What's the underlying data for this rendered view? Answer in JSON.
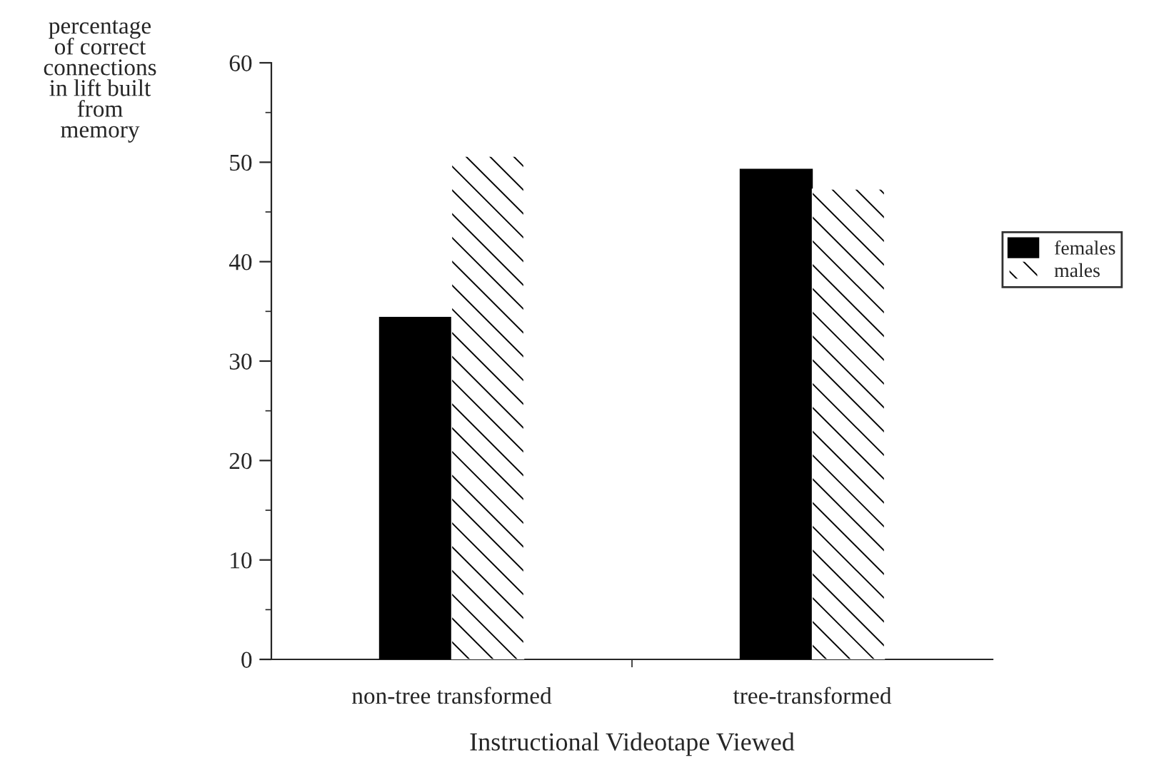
{
  "chart_data": {
    "type": "bar",
    "xlabel": "Instructional Videotape Viewed",
    "ylabel": "percentage\nof correct\nconnections\nin lift built\nfrom\nmemory",
    "categories": [
      "non-tree transformed",
      "tree-transformed"
    ],
    "series": [
      {
        "name": "females",
        "color": "#000000",
        "values": [
          34.4,
          49.3
        ]
      },
      {
        "name": "males",
        "color": "#ffffff",
        "values": [
          50.6,
          47.3
        ]
      }
    ],
    "ylim": [
      0,
      60
    ],
    "yticks": [
      0,
      10,
      20,
      30,
      40,
      50,
      60
    ],
    "grid": false,
    "legend": "right"
  }
}
